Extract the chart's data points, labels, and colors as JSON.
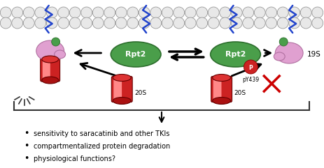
{
  "bg_color": "#ffffff",
  "membrane_circle_color": "#e8e8e8",
  "membrane_circle_edge": "#888888",
  "bullet_points": [
    "sensitivity to saracatinib and other TKIs",
    "compartmentalized protein degradation",
    "physiological functions?"
  ],
  "rpt2_color": "#4a9e4a",
  "rpt2_edge": "#2d6e2d",
  "proteasome_red": "#cc2222",
  "proteasome_highlight": "#ff8888",
  "pink_blob_color": "#e0a0d0",
  "pink_blob_edge": "#b070a0",
  "phospho_color": "#cc2222",
  "bracket_color": "#333333",
  "blue_anchor_color": "#2244cc",
  "cross_color": "#cc0000"
}
